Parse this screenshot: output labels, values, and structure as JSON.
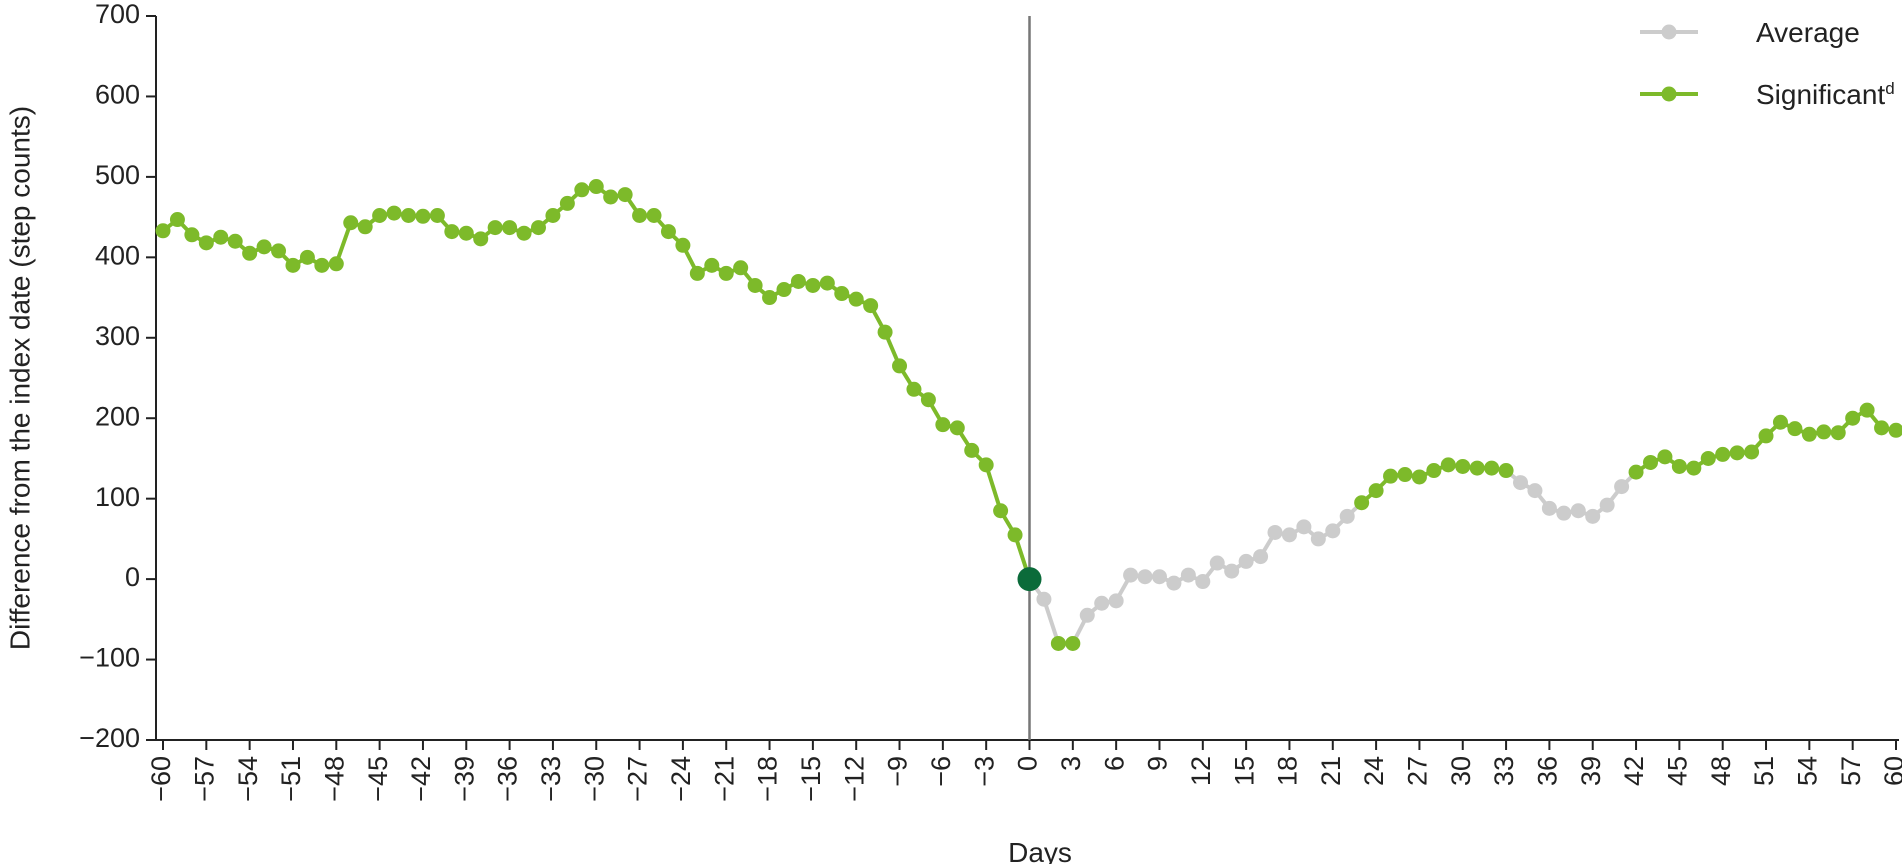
{
  "chart_data": {
    "type": "line",
    "x_label": "Days",
    "y_label": "Difference from the index date (step counts)",
    "x": [
      -60,
      -59,
      -58,
      -57,
      -56,
      -55,
      -54,
      -53,
      -52,
      -51,
      -50,
      -49,
      -48,
      -47,
      -46,
      -45,
      -44,
      -43,
      -42,
      -41,
      -40,
      -39,
      -38,
      -37,
      -36,
      -35,
      -34,
      -33,
      -32,
      -31,
      -30,
      -29,
      -28,
      -27,
      -26,
      -25,
      -24,
      -23,
      -22,
      -21,
      -20,
      -19,
      -18,
      -17,
      -16,
      -15,
      -14,
      -13,
      -12,
      -11,
      -10,
      -9,
      -8,
      -7,
      -6,
      -5,
      -4,
      -3,
      -2,
      -1,
      0,
      1,
      2,
      3,
      4,
      5,
      6,
      7,
      8,
      9,
      10,
      11,
      12,
      13,
      14,
      15,
      16,
      17,
      18,
      19,
      20,
      21,
      22,
      23,
      24,
      25,
      26,
      27,
      28,
      29,
      30,
      31,
      32,
      33,
      34,
      35,
      36,
      37,
      38,
      39,
      40,
      41,
      42,
      43,
      44,
      45,
      46,
      47,
      48,
      49,
      50,
      51,
      52,
      53,
      54,
      55,
      56,
      57,
      58,
      59,
      60
    ],
    "series": [
      {
        "name": "Average",
        "color": "#cccccc",
        "values": [
          null,
          null,
          null,
          null,
          null,
          null,
          null,
          null,
          null,
          null,
          null,
          null,
          null,
          null,
          null,
          null,
          null,
          null,
          null,
          null,
          null,
          null,
          null,
          null,
          null,
          null,
          null,
          null,
          null,
          null,
          null,
          null,
          null,
          null,
          null,
          null,
          null,
          null,
          null,
          null,
          null,
          null,
          null,
          null,
          null,
          null,
          null,
          null,
          null,
          null,
          null,
          null,
          null,
          null,
          null,
          null,
          null,
          null,
          null,
          null,
          null,
          -25,
          null,
          null,
          -45,
          -30,
          -27,
          5,
          3,
          3,
          -5,
          5,
          -3,
          20,
          10,
          22,
          28,
          58,
          55,
          65,
          50,
          60,
          78,
          null,
          null,
          null,
          null,
          null,
          null,
          null,
          null,
          null,
          null,
          null,
          120,
          110,
          88,
          82,
          85,
          78,
          92,
          115,
          null,
          null,
          null,
          null,
          null,
          null,
          null,
          null,
          null,
          null,
          null,
          null,
          null,
          null,
          null,
          null,
          null,
          null,
          null
        ]
      },
      {
        "name": "Significant",
        "name_sup": "d",
        "color": "#7dba2a",
        "values": [
          433,
          447,
          428,
          418,
          425,
          420,
          405,
          413,
          408,
          390,
          400,
          390,
          392,
          443,
          438,
          452,
          455,
          452,
          451,
          452,
          432,
          430,
          423,
          437,
          437,
          430,
          437,
          452,
          467,
          484,
          488,
          475,
          478,
          452,
          452,
          432,
          415,
          380,
          390,
          380,
          387,
          365,
          350,
          360,
          370,
          365,
          368,
          355,
          348,
          340,
          307,
          265,
          236,
          223,
          192,
          188,
          160,
          142,
          85,
          55,
          0,
          null,
          -80,
          -80,
          null,
          null,
          null,
          null,
          null,
          null,
          null,
          null,
          null,
          null,
          null,
          null,
          null,
          null,
          null,
          null,
          null,
          null,
          null,
          95,
          110,
          128,
          130,
          127,
          135,
          142,
          140,
          138,
          138,
          135,
          null,
          null,
          null,
          null,
          null,
          null,
          null,
          null,
          133,
          145,
          152,
          140,
          138,
          150,
          155,
          157,
          158,
          178,
          195,
          187,
          180,
          183,
          182,
          200,
          210,
          188,
          185
        ]
      }
    ],
    "index_point": {
      "x": 0,
      "color": "#0b6b3a"
    },
    "vline": 0,
    "xlim": [
      -60,
      60
    ],
    "ylim": [
      -200,
      700
    ],
    "xticks": [
      {
        "value": -60,
        "label": "−60"
      },
      {
        "value": -57,
        "label": "−57"
      },
      {
        "value": -54,
        "label": "−54"
      },
      {
        "value": -51,
        "label": "−51"
      },
      {
        "value": -48,
        "label": "−48"
      },
      {
        "value": -45,
        "label": "−45"
      },
      {
        "value": -42,
        "label": "−42"
      },
      {
        "value": -39,
        "label": "−39"
      },
      {
        "value": -36,
        "label": "−36"
      },
      {
        "value": -33,
        "label": "−33"
      },
      {
        "value": -30,
        "label": "−30"
      },
      {
        "value": -27,
        "label": "−27"
      },
      {
        "value": -24,
        "label": "−24"
      },
      {
        "value": -21,
        "label": "−21"
      },
      {
        "value": -18,
        "label": "−18"
      },
      {
        "value": -15,
        "label": "−15"
      },
      {
        "value": -12,
        "label": "−12"
      },
      {
        "value": -9,
        "label": "−9"
      },
      {
        "value": -6,
        "label": "−6"
      },
      {
        "value": -3,
        "label": "−3"
      },
      0,
      3,
      6,
      9,
      12,
      15,
      18,
      21,
      24,
      27,
      30,
      33,
      36,
      39,
      42,
      45,
      48,
      51,
      54,
      57,
      60
    ],
    "yticks": [
      {
        "value": -200,
        "label": "−200"
      },
      {
        "value": -100,
        "label": "−100"
      },
      0,
      100,
      200,
      300,
      400,
      500,
      600,
      700
    ],
    "legend": "upper right"
  }
}
